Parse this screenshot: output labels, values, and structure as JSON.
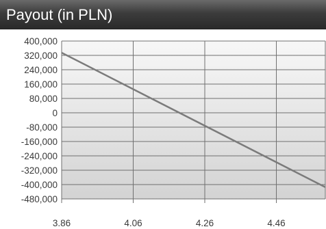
{
  "panel": {
    "title": "Payout (in PLN)"
  },
  "colors": {
    "title_bar": "#3c3c3c",
    "plot_top": "#f7f7f7",
    "plot_bottom": "#d3d3d3",
    "grid": "#6f6f6f",
    "line": "#7b7b7b",
    "tick_text": "#3a3a3a"
  },
  "chart_data": {
    "type": "line",
    "title": "Payout (in PLN)",
    "xlabel": "",
    "ylabel": "",
    "x_ticks": [
      "3.86",
      "4.06",
      "4.26",
      "4.46"
    ],
    "y_ticks": [
      "400,000",
      "320,000",
      "240,000",
      "160,000",
      "80,000",
      "0",
      "-80,000",
      "-160,000",
      "-240,000",
      "-320,000",
      "-400,000",
      "-480,000"
    ],
    "xlim": [
      3.86,
      4.5968
    ],
    "ylim": [
      -480000,
      400000
    ],
    "grid": true,
    "series": [
      {
        "x": [
          3.86,
          4.597
        ],
        "y": [
          335000,
          -415000
        ]
      }
    ]
  }
}
